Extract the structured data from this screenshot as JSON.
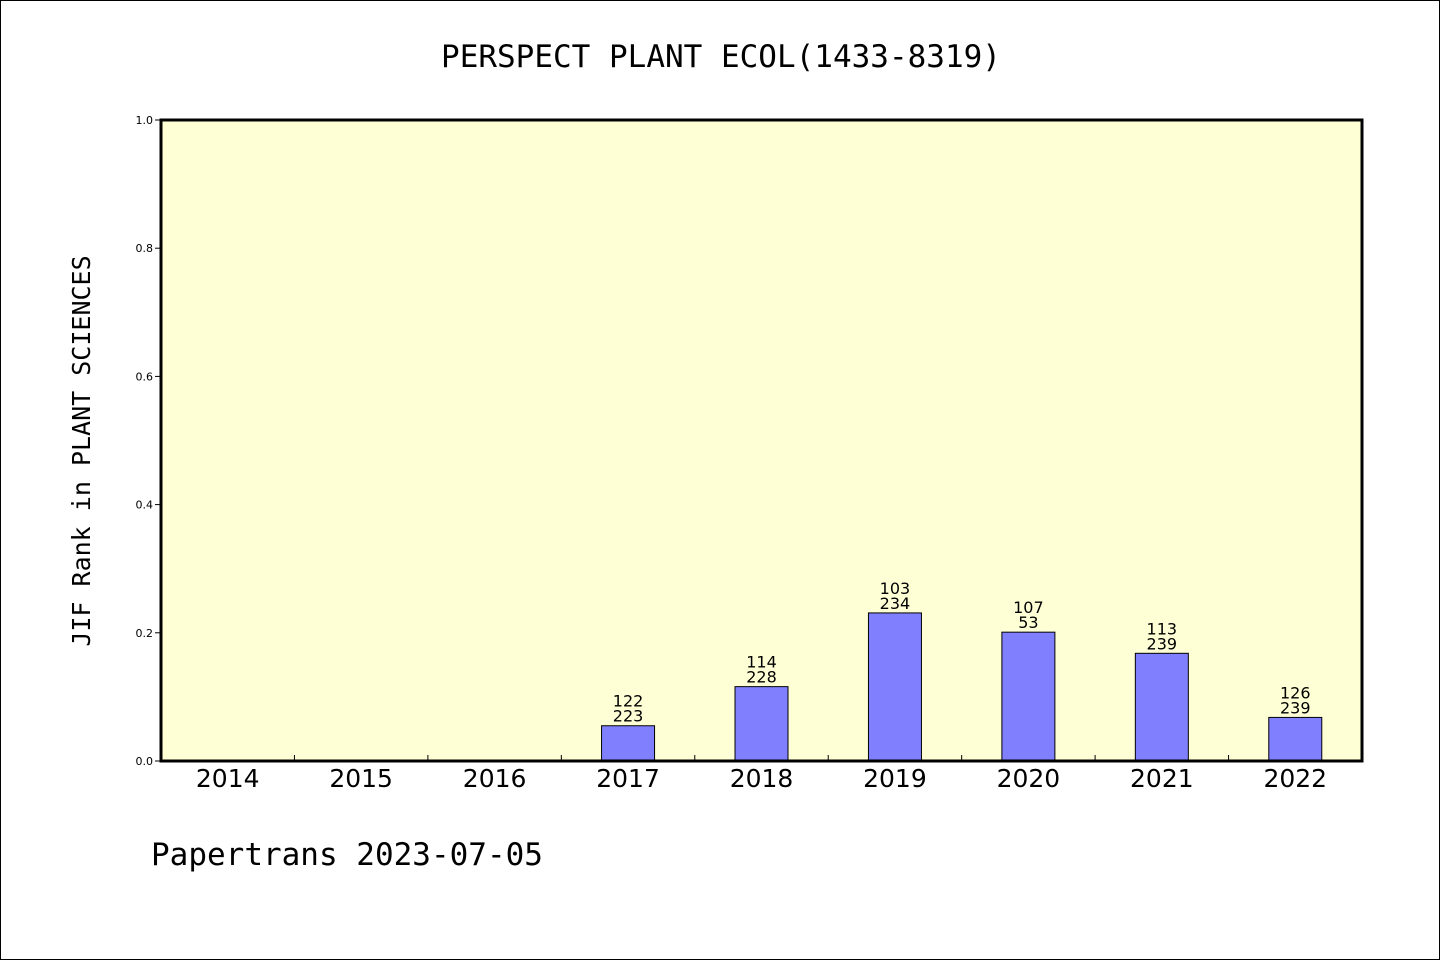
{
  "chart_data": {
    "type": "bar",
    "title": "PERSPECT PLANT ECOL(1433-8319)",
    "ylabel": "JIF Rank in PLANT SCIENCES",
    "xlabel": "",
    "footer": "Papertrans 2023-07-05",
    "ylim": [
      0,
      1.0
    ],
    "yticks": [
      "0.0",
      "0.2",
      "0.4",
      "0.6",
      "0.8",
      "1.0"
    ],
    "categories": [
      "2014",
      "2015",
      "2016",
      "2017",
      "2018",
      "2019",
      "2020",
      "2021",
      "2022"
    ],
    "values": [
      null,
      null,
      null,
      0.055,
      0.116,
      0.231,
      0.201,
      0.168,
      0.068
    ],
    "rank_labels": [
      null,
      null,
      null,
      "122",
      "114",
      "103",
      "107",
      "113",
      "126"
    ],
    "total_labels": [
      null,
      null,
      null,
      "223",
      "228",
      "234",
      "53",
      "239",
      "239"
    ],
    "colors": {
      "plot_bg": "#ffffd6",
      "bar": "#8080ff",
      "frame": "#000000"
    }
  }
}
